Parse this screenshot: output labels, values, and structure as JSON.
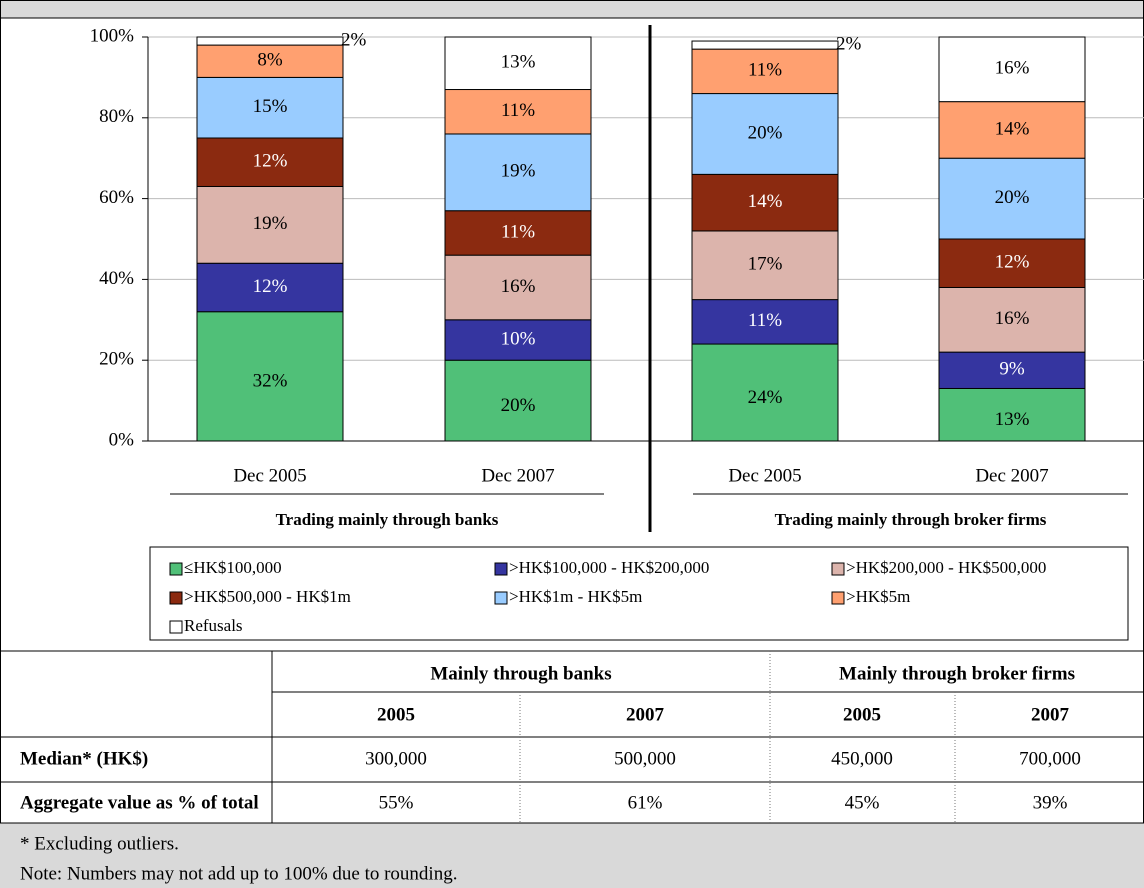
{
  "chart_data": {
    "type": "bar",
    "stacked": true,
    "categories": [
      "Dec 2005",
      "Dec 2007",
      "Dec 2005",
      "Dec 2007"
    ],
    "groups": [
      "Trading mainly through banks",
      "Trading mainly through broker firms"
    ],
    "series": [
      {
        "name": "≤HK$100,000",
        "color": "#50c078",
        "values": [
          32,
          20,
          24,
          13
        ],
        "value_labels": [
          "32%",
          "20%",
          "24%",
          "13%"
        ]
      },
      {
        "name": ">HK$100,000 - HK$200,000",
        "color": "#3535a0",
        "values": [
          12,
          10,
          11,
          9
        ],
        "value_labels": [
          "12%",
          "10%",
          "11%",
          "9%"
        ]
      },
      {
        "name": ">HK$200,000 - HK$500,000",
        "color": "#dcb4ac",
        "values": [
          19,
          16,
          17,
          16
        ],
        "value_labels": [
          "19%",
          "16%",
          "17%",
          "16%"
        ]
      },
      {
        "name": ">HK$500,000 - HK$1m",
        "color": "#8b2a10",
        "values": [
          12,
          11,
          14,
          12
        ],
        "value_labels": [
          "12%",
          "11%",
          "14%",
          "12%"
        ]
      },
      {
        "name": ">HK$1m - HK$5m",
        "color": "#99ccff",
        "values": [
          15,
          19,
          20,
          20
        ],
        "value_labels": [
          "15%",
          "19%",
          "20%",
          "20%"
        ]
      },
      {
        "name": ">HK$5m",
        "color": "#ffa070",
        "values": [
          8,
          11,
          11,
          14
        ],
        "value_labels": [
          "8%",
          "11%",
          "11%",
          "14%"
        ]
      },
      {
        "name": "Refusals",
        "color": "#ffffff",
        "values": [
          2,
          13,
          2,
          16
        ],
        "value_labels": [
          "2%",
          "13%",
          "2%",
          "16%"
        ]
      }
    ],
    "ylim": [
      0,
      100
    ],
    "yticks": [
      {
        "value": 0,
        "label": "0%"
      },
      {
        "value": 20,
        "label": "20%"
      },
      {
        "value": 40,
        "label": "40%"
      },
      {
        "value": 60,
        "label": "60%"
      },
      {
        "value": 80,
        "label": "80%"
      },
      {
        "value": 100,
        "label": "100%"
      }
    ],
    "grid": true
  },
  "table": {
    "group_headers": [
      "Mainly through banks",
      "Mainly through broker firms"
    ],
    "years": [
      "2005",
      "2007",
      "2005",
      "2007"
    ],
    "rows": [
      {
        "label": "Median* (HK$)",
        "cells": [
          "300,000",
          "500,000",
          "450,000",
          "700,000"
        ]
      },
      {
        "label": "Aggregate value as % of total",
        "cells": [
          "55%",
          "61%",
          "45%",
          "39%"
        ]
      }
    ]
  },
  "notes": [
    "* Excluding outliers.",
    "Note: Numbers may not add up to 100% due to rounding."
  ]
}
